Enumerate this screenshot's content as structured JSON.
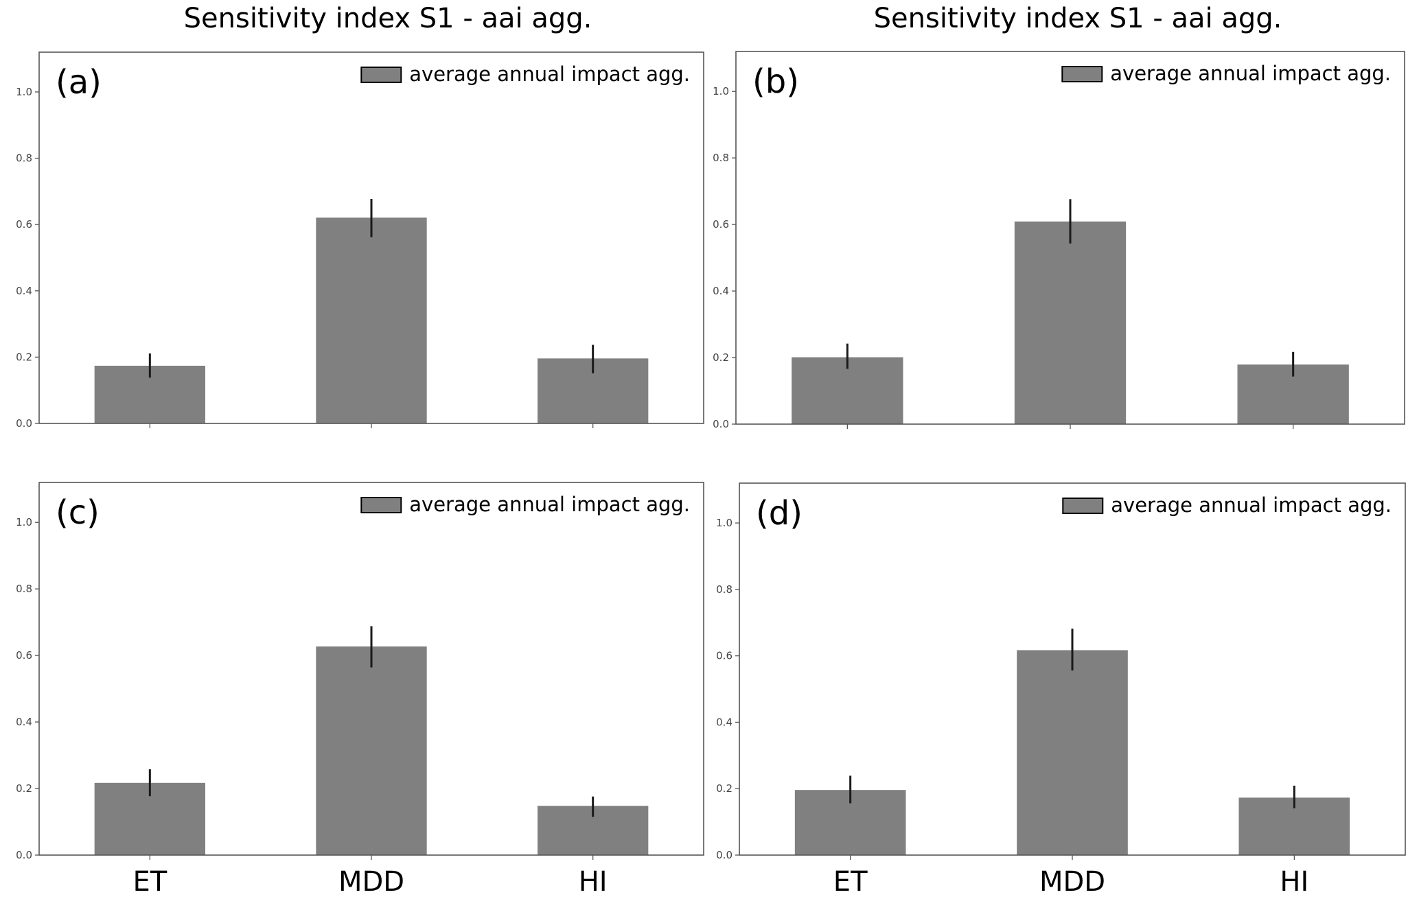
{
  "figure": {
    "column_titles": [
      "Sensitivity index S1 - aai agg.",
      "Sensitivity index S1 - aai agg."
    ]
  },
  "colors": {
    "bar": "#808080",
    "error_bar": "#1a1a1a",
    "axis": "#555555",
    "tick_label": "#444444",
    "text": "#000000"
  },
  "chart_data": [
    {
      "type": "bar",
      "panel_label": "(a)",
      "title": "Sensitivity index S1 - aai agg.",
      "legend": [
        "average annual impact agg."
      ],
      "legend_position": "top-right",
      "categories": [
        "ET",
        "MDD",
        "HI"
      ],
      "show_category_labels": false,
      "series": [
        {
          "name": "average annual impact agg.",
          "values": [
            0.174,
            0.621,
            0.196
          ],
          "error_low": [
            0.138,
            0.562,
            0.151
          ],
          "error_high": [
            0.211,
            0.677,
            0.237
          ]
        }
      ],
      "yticks": [
        "0.0",
        "0.2",
        "0.4",
        "0.6",
        "0.8",
        "1.0"
      ],
      "ylim": [
        0,
        1.12
      ],
      "xlabel": "",
      "ylabel": "",
      "grid": false
    },
    {
      "type": "bar",
      "panel_label": "(b)",
      "title": "Sensitivity index S1 - aai agg.",
      "legend": [
        "average annual impact agg."
      ],
      "legend_position": "top-right",
      "categories": [
        "ET",
        "MDD",
        "HI"
      ],
      "show_category_labels": false,
      "series": [
        {
          "name": "average annual impact agg.",
          "values": [
            0.201,
            0.609,
            0.179
          ],
          "error_low": [
            0.166,
            0.543,
            0.143
          ],
          "error_high": [
            0.242,
            0.676,
            0.217
          ]
        }
      ],
      "yticks": [
        "0.0",
        "0.2",
        "0.4",
        "0.6",
        "0.8",
        "1.0"
      ],
      "ylim": [
        0,
        1.12
      ],
      "xlabel": "",
      "ylabel": "",
      "grid": false
    },
    {
      "type": "bar",
      "panel_label": "(c)",
      "title": "",
      "legend": [
        "average annual impact agg."
      ],
      "legend_position": "top-right",
      "categories": [
        "ET",
        "MDD",
        "HI"
      ],
      "show_category_labels": true,
      "series": [
        {
          "name": "average annual impact agg.",
          "values": [
            0.217,
            0.627,
            0.148
          ],
          "error_low": [
            0.177,
            0.564,
            0.115
          ],
          "error_high": [
            0.258,
            0.688,
            0.176
          ]
        }
      ],
      "yticks": [
        "0.0",
        "0.2",
        "0.4",
        "0.6",
        "0.8",
        "1.0"
      ],
      "ylim": [
        0,
        1.12
      ],
      "xlabel": "",
      "ylabel": "",
      "grid": false
    },
    {
      "type": "bar",
      "panel_label": "(d)",
      "title": "",
      "legend": [
        "average annual impact agg."
      ],
      "legend_position": "top-right",
      "categories": [
        "ET",
        "MDD",
        "HI"
      ],
      "show_category_labels": true,
      "series": [
        {
          "name": "average annual impact agg.",
          "values": [
            0.196,
            0.617,
            0.173
          ],
          "error_low": [
            0.156,
            0.556,
            0.141
          ],
          "error_high": [
            0.239,
            0.682,
            0.209
          ]
        }
      ],
      "yticks": [
        "0.0",
        "0.2",
        "0.4",
        "0.6",
        "0.8",
        "1.0"
      ],
      "ylim": [
        0,
        1.12
      ],
      "xlabel": "",
      "ylabel": "",
      "grid": false
    }
  ]
}
